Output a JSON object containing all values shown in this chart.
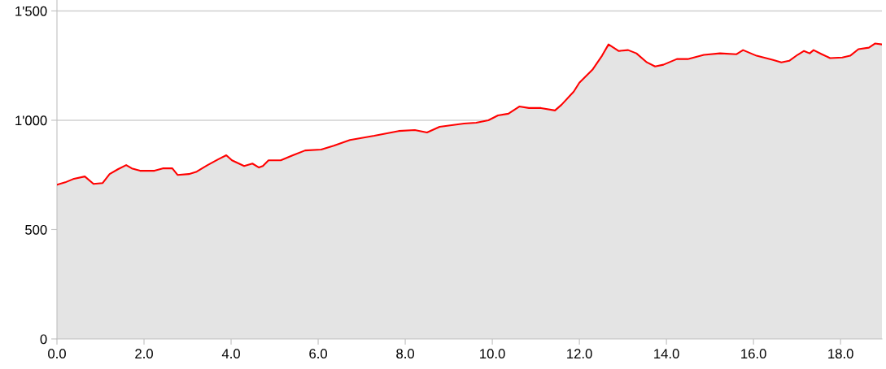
{
  "chart_data": {
    "type": "area",
    "x": [
      0,
      0.19,
      0.37,
      0.64,
      0.84,
      1.05,
      1.21,
      1.4,
      1.59,
      1.72,
      1.91,
      2.24,
      2.43,
      2.65,
      2.77,
      3.03,
      3.21,
      3.46,
      3.7,
      3.89,
      4.02,
      4.3,
      4.49,
      4.64,
      4.73,
      4.86,
      5.14,
      5.42,
      5.7,
      6.07,
      6.36,
      6.73,
      7.29,
      7.85,
      8.22,
      8.5,
      8.79,
      9.35,
      9.63,
      9.91,
      10.13,
      10.37,
      10.62,
      10.84,
      11.12,
      11.44,
      11.59,
      11.87,
      12.0,
      12.3,
      12.52,
      12.67,
      12.9,
      13.12,
      13.31,
      13.55,
      13.74,
      13.93,
      14.24,
      14.49,
      14.86,
      15.23,
      15.61,
      15.76,
      16.07,
      16.45,
      16.64,
      16.82,
      17.01,
      17.16,
      17.29,
      17.38,
      17.57,
      17.76,
      18.04,
      18.22,
      18.41,
      18.65,
      18.79,
      18.95
    ],
    "series": [
      {
        "color": "#ff0000",
        "values": [
          705,
          716,
          731,
          743,
          709,
          713,
          754,
          776,
          795,
          780,
          769,
          769,
          780,
          780,
          750,
          754,
          765,
          795,
          821,
          840,
          817,
          791,
          802,
          784,
          791,
          817,
          817,
          840,
          862,
          866,
          884,
          910,
          929,
          951,
          955,
          944,
          970,
          985,
          989,
          1000,
          1022,
          1030,
          1063,
          1056,
          1056,
          1045,
          1071,
          1131,
          1172,
          1231,
          1295,
          1347,
          1317,
          1321,
          1306,
          1265,
          1246,
          1254,
          1280,
          1280,
          1299,
          1306,
          1302,
          1321,
          1295,
          1276,
          1265,
          1272,
          1299,
          1317,
          1306,
          1321,
          1302,
          1284,
          1287,
          1295,
          1325,
          1332,
          1351,
          1347
        ]
      }
    ],
    "xlim": [
      0,
      18.95
    ],
    "xticks": [
      {
        "value": 0,
        "label": "0.0"
      },
      {
        "value": 2,
        "label": "2.0"
      },
      {
        "value": 4,
        "label": "4.0"
      },
      {
        "value": 6,
        "label": "6.0"
      },
      {
        "value": 8,
        "label": "8.0"
      },
      {
        "value": 10,
        "label": "10.0"
      },
      {
        "value": 12,
        "label": "12.0"
      },
      {
        "value": 14,
        "label": "14.0"
      },
      {
        "value": 16,
        "label": "16.0"
      },
      {
        "value": 18,
        "label": "18.0"
      }
    ],
    "ylim": [
      0,
      1550
    ],
    "yticks": [
      0,
      500,
      {
        "value": 1000,
        "label": "1'000"
      },
      {
        "value": 1500,
        "label": "1'500"
      }
    ],
    "grid": "y"
  }
}
